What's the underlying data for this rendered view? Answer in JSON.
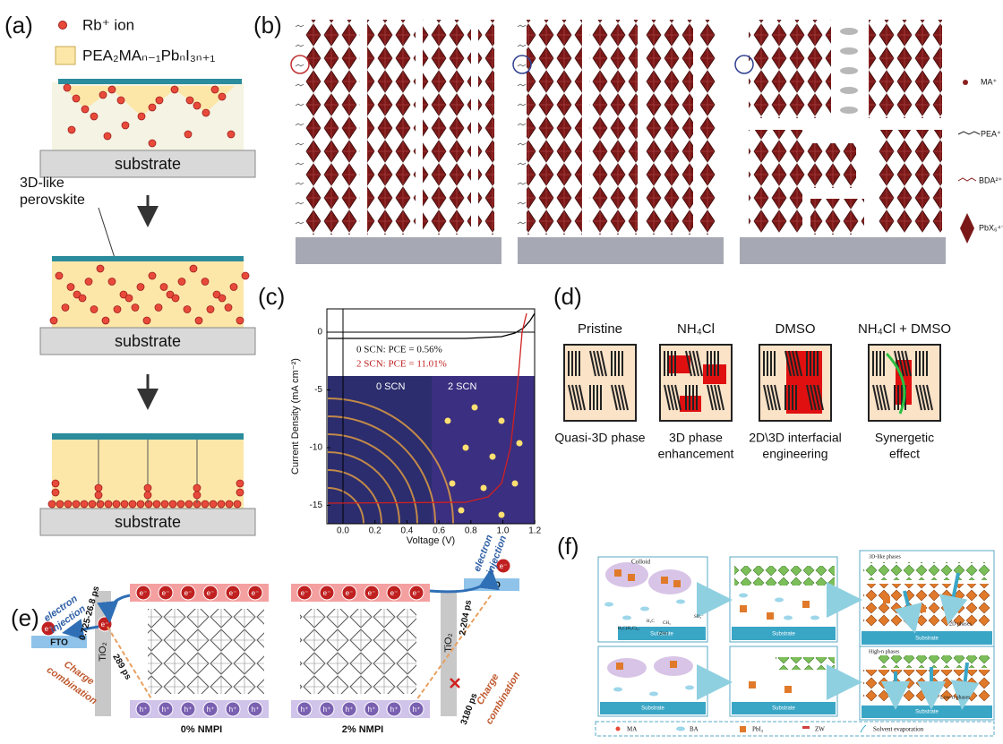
{
  "panel_a": {
    "label": "(a)",
    "legend_ion": "Rb⁺ ion",
    "legend_phase": "PEA₂MAₙ₋₁PbₙI₃ₙ₊₁",
    "substrate": "substrate",
    "annotation": [
      "3D-like",
      "perovskite"
    ]
  },
  "panel_b": {
    "label": "(b)",
    "legend": [
      "MA⁺",
      "PEA⁺",
      "BDA²⁺",
      "PbX₆⁴⁻"
    ]
  },
  "panel_c": {
    "label": "(c)",
    "x_label": "Voltage (V)",
    "y_label": "Current Density (mA cm⁻²)",
    "x_ticks": [
      "0.0",
      "0.2",
      "0.4",
      "0.6",
      "0.8",
      "1.0",
      "1.2"
    ],
    "y_ticks": [
      "0",
      "-5",
      "-10",
      "-15"
    ],
    "legend": [
      "0 SCN: PCE = 0.56%",
      "2 SCN: PCE = 11.01%"
    ],
    "insets": [
      "0 SCN",
      "2 SCN"
    ]
  },
  "panel_d": {
    "label": "(d)",
    "columns": [
      {
        "title": "Pristine",
        "caption": [
          "Quasi-3D phase"
        ]
      },
      {
        "title": "NH₄Cl",
        "caption": [
          "3D phase",
          "enhancement"
        ]
      },
      {
        "title": "DMSO",
        "caption": [
          "2D\\3D interfacial",
          "engineering"
        ]
      },
      {
        "title": "NH₄Cl + DMSO",
        "caption": [
          "Synergetic",
          "effect"
        ]
      }
    ]
  },
  "panel_e": {
    "label": "(e)",
    "electron": "e⁻",
    "hole": "h⁺",
    "injection": [
      "electron",
      "injection"
    ],
    "left_injection_time": "0.725-26.8 ps",
    "right_injection_time": "2-204 ps",
    "tio2": "TiO₂",
    "fto": "FTO",
    "left_recombination_time": "289 ps",
    "right_recombination_time": "3180 ps",
    "recombination": [
      "Charge",
      "combination"
    ],
    "left_sample": "0% NMPI",
    "right_sample": "2% NMPI"
  },
  "panel_f": {
    "label": "(f)",
    "colloid": "Colloid",
    "substrate": "Substrate",
    "phase_3d": "3D-like phases",
    "phase_2d": "2D phases",
    "phase_high_n": "High-n phases",
    "phase_low_n": "Low-n phases",
    "zw": "(ZW)",
    "formula_parts": [
      "H₃C",
      "CH₃",
      "SO₃⁻",
      "H₃C(H₂C)₁₅"
    ],
    "legend": [
      "MA",
      "BA",
      "PbI₃",
      "ZW",
      "Solvent evaporation"
    ]
  }
}
